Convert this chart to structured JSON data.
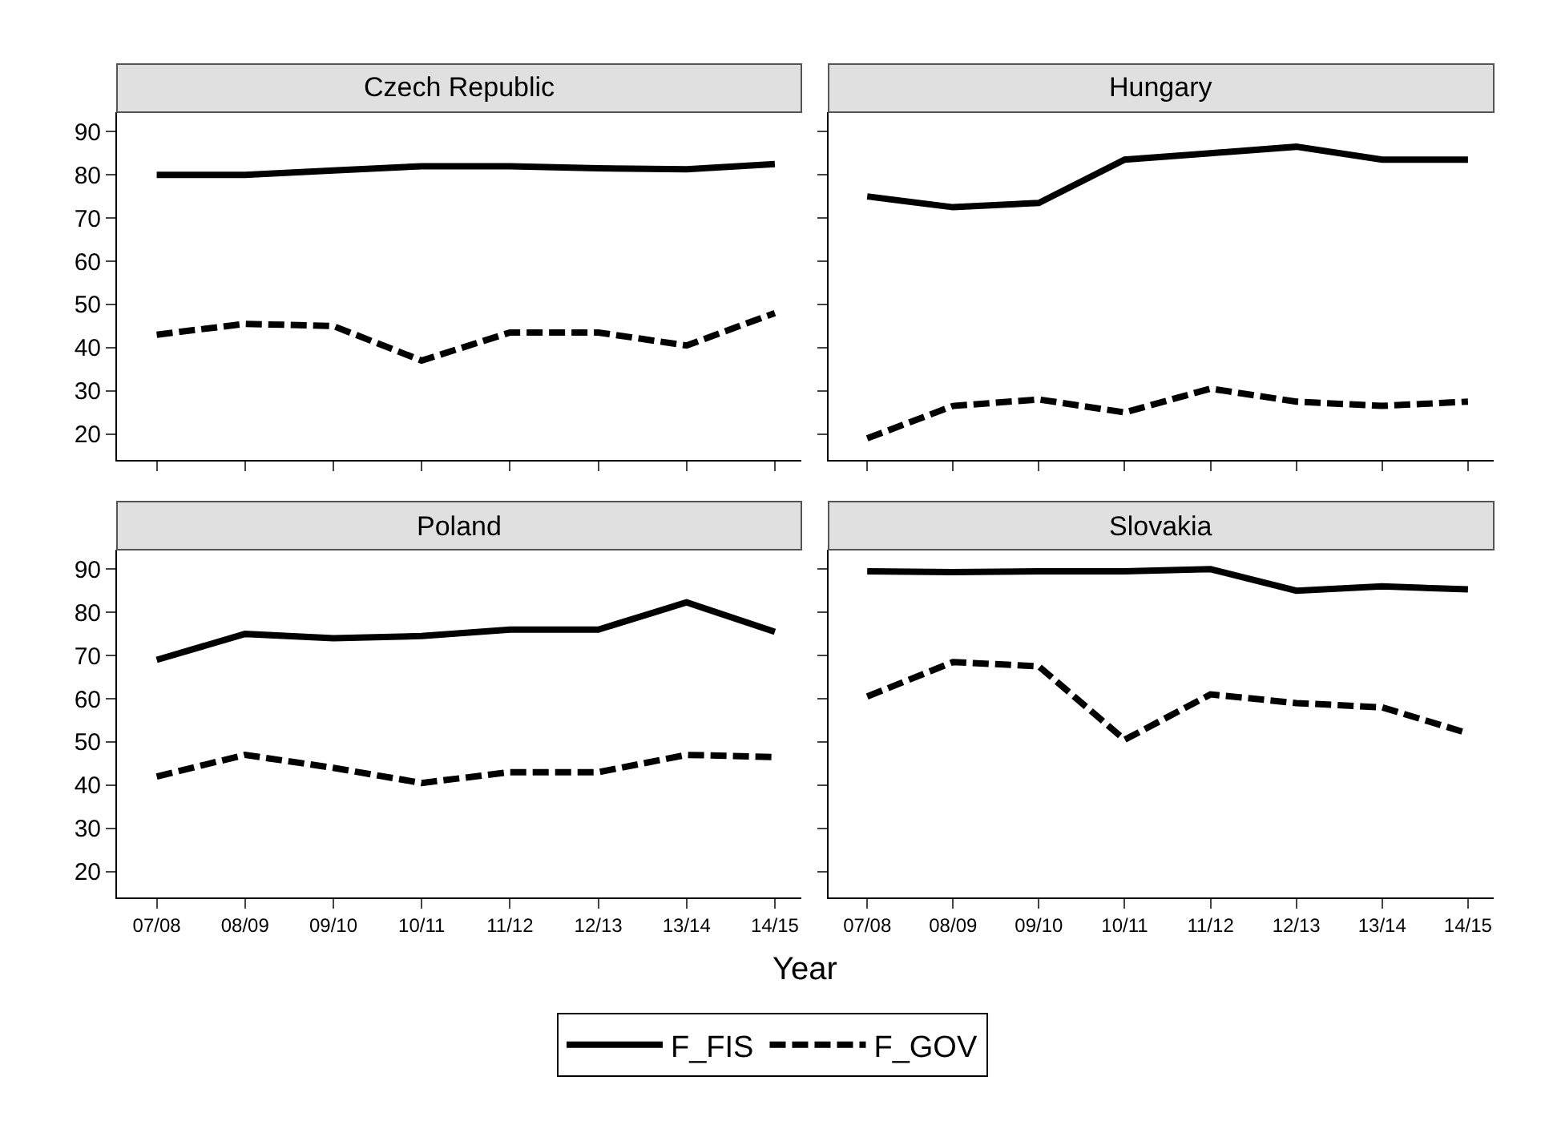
{
  "chart_data": [
    {
      "type": "line",
      "title": "Czech Republic",
      "categories": [
        "07/08",
        "08/09",
        "09/10",
        "10/11",
        "11/12",
        "12/13",
        "13/14",
        "14/15"
      ],
      "ylim": [
        14,
        94.5
      ],
      "yticks": [
        20,
        30,
        40,
        50,
        60,
        70,
        80,
        90
      ],
      "tick_labels": "y",
      "series": [
        {
          "color": "#000000",
          "line_style": "solid",
          "values": [
            80,
            80,
            81,
            82,
            82,
            81.5,
            81.3,
            82.5
          ]
        },
        {
          "color": "#000000",
          "line_style": "dashed",
          "values": [
            43,
            45.5,
            45,
            37,
            43.5,
            43.5,
            40.5,
            48
          ]
        }
      ]
    },
    {
      "type": "line",
      "title": "Hungary",
      "categories": [
        "07/08",
        "08/09",
        "09/10",
        "10/11",
        "11/12",
        "12/13",
        "13/14",
        "14/15"
      ],
      "ylim": [
        14,
        94.5
      ],
      "yticks": [
        20,
        30,
        40,
        50,
        60,
        70,
        80,
        90
      ],
      "tick_labels": false,
      "series": [
        {
          "color": "#000000",
          "line_style": "solid",
          "values": [
            75,
            72.5,
            73.5,
            83.5,
            85,
            86.5,
            83.5,
            83.5
          ]
        },
        {
          "color": "#000000",
          "line_style": "dashed",
          "values": [
            19,
            26.5,
            28,
            25,
            30.5,
            27.5,
            26.5,
            27.5
          ]
        }
      ]
    },
    {
      "type": "line",
      "title": "Poland",
      "xlabel": "Year",
      "categories": [
        "07/08",
        "08/09",
        "09/10",
        "10/11",
        "11/12",
        "12/13",
        "13/14",
        "14/15"
      ],
      "ylim": [
        14,
        94.5
      ],
      "yticks": [
        20,
        30,
        40,
        50,
        60,
        70,
        80,
        90
      ],
      "series": [
        {
          "color": "#000000",
          "line_style": "solid",
          "values": [
            69,
            75,
            74,
            74.5,
            76,
            76,
            82.3,
            75.5
          ]
        },
        {
          "color": "#000000",
          "line_style": "dashed",
          "values": [
            42,
            47,
            44,
            40.5,
            43,
            43,
            47,
            46.5
          ]
        }
      ]
    },
    {
      "type": "line",
      "title": "Slovakia",
      "categories": [
        "07/08",
        "08/09",
        "09/10",
        "10/11",
        "11/12",
        "12/13",
        "13/14",
        "14/15"
      ],
      "ylim": [
        14,
        94.5
      ],
      "yticks": [
        20,
        30,
        40,
        50,
        60,
        70,
        80,
        90
      ],
      "tick_labels": "x",
      "legend": "bottom",
      "series": [
        {
          "name": "F_FIS",
          "color": "#000000",
          "line_style": "solid",
          "values": [
            89.5,
            89.3,
            89.5,
            89.5,
            90,
            85,
            86,
            85.3
          ]
        },
        {
          "name": "F_GOV",
          "color": "#000000",
          "line_style": "dashed",
          "values": [
            60.5,
            68.5,
            67.5,
            50.5,
            61,
            59,
            58,
            52
          ]
        }
      ]
    }
  ]
}
